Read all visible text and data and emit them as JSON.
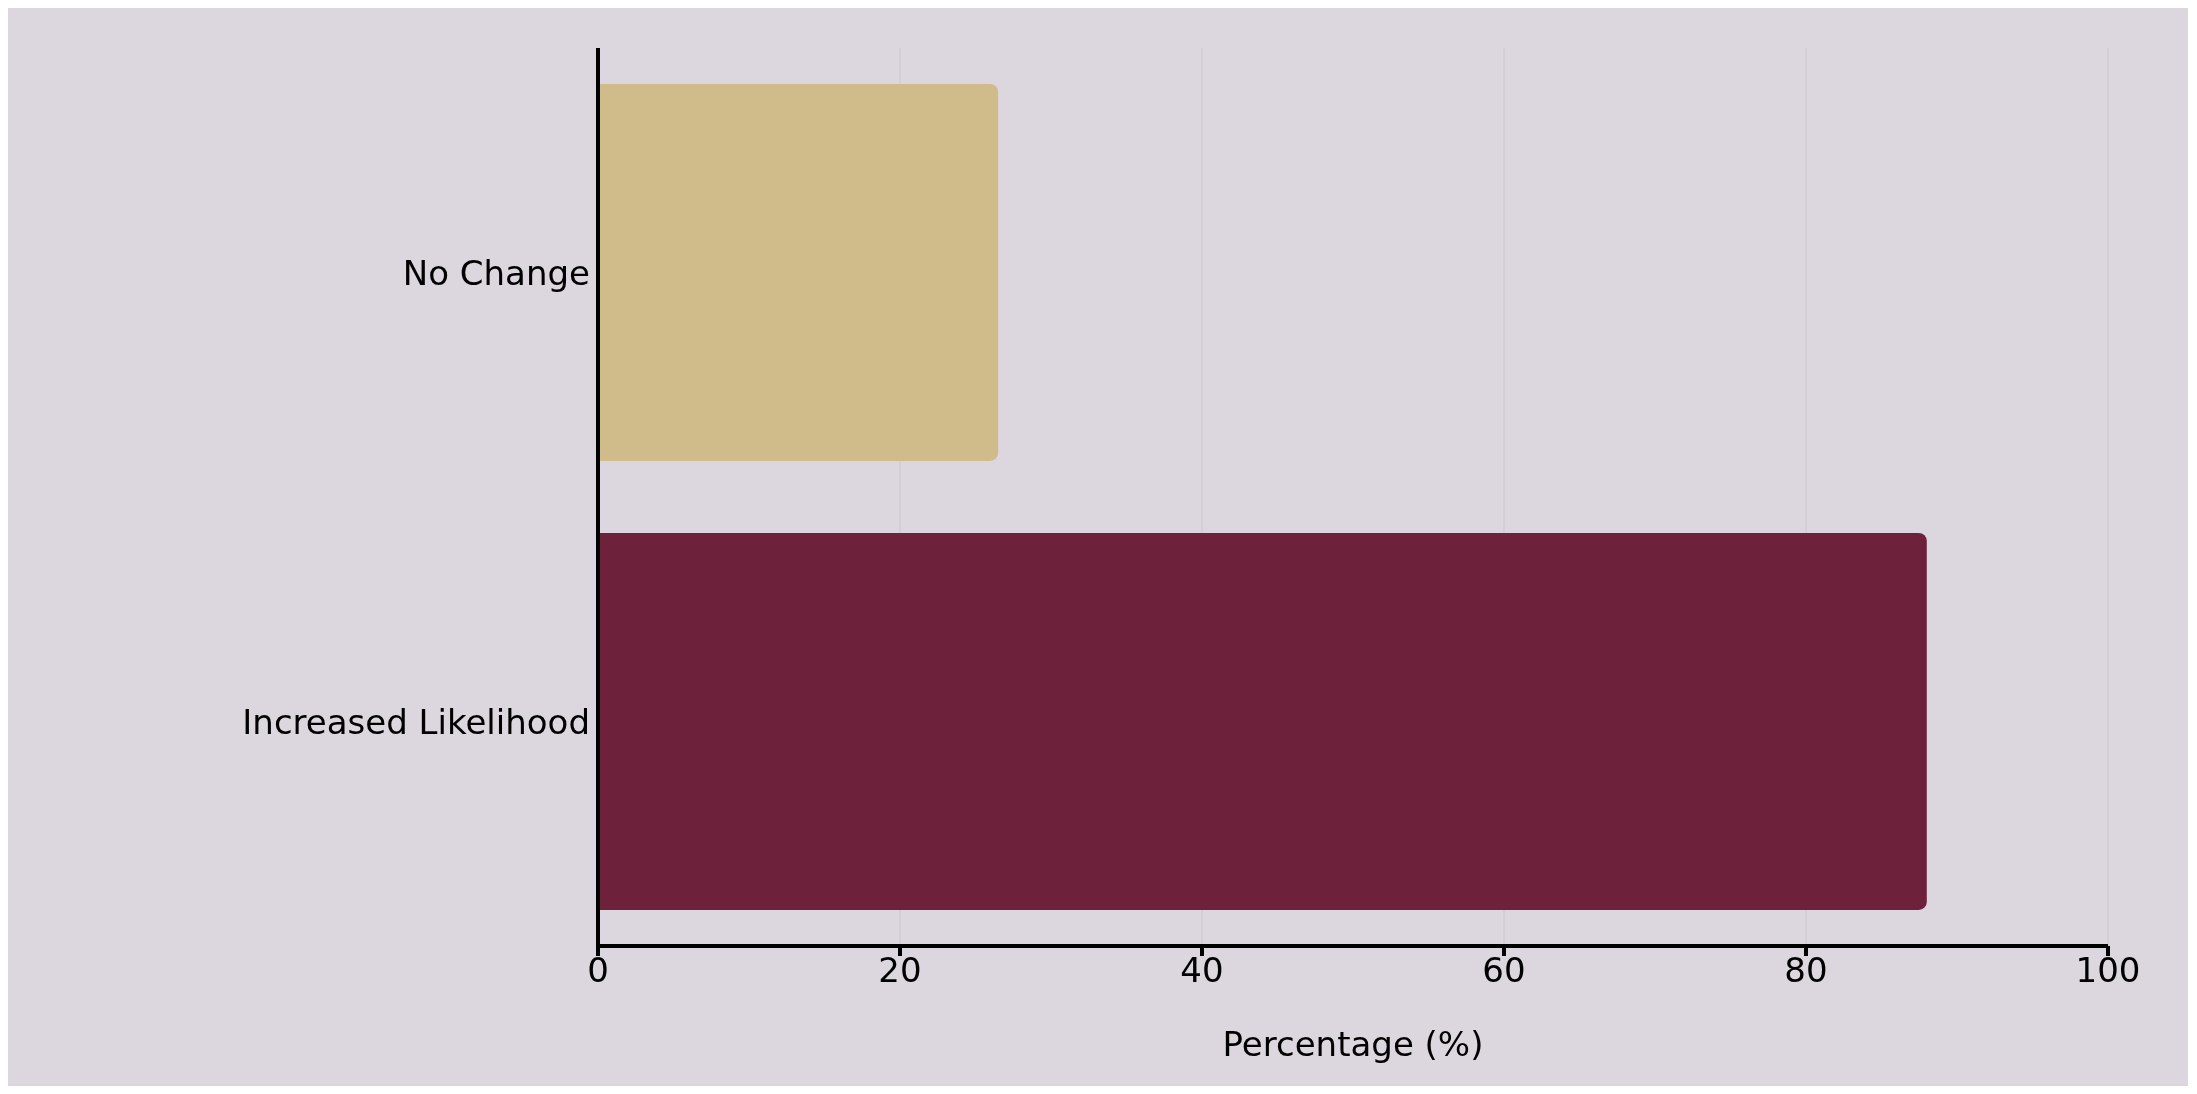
{
  "chart_data": {
    "type": "bar",
    "orientation": "horizontal",
    "categories": [
      "No Change",
      "Increased Likelihood"
    ],
    "values": [
      26.5,
      88
    ],
    "colors": [
      "#cfbc8a",
      "#6e213b"
    ],
    "xlim": [
      0,
      100
    ],
    "xticks": [
      0,
      20,
      40,
      60,
      80,
      100
    ],
    "xlabel": "Percentage (%)",
    "grid": "x"
  }
}
